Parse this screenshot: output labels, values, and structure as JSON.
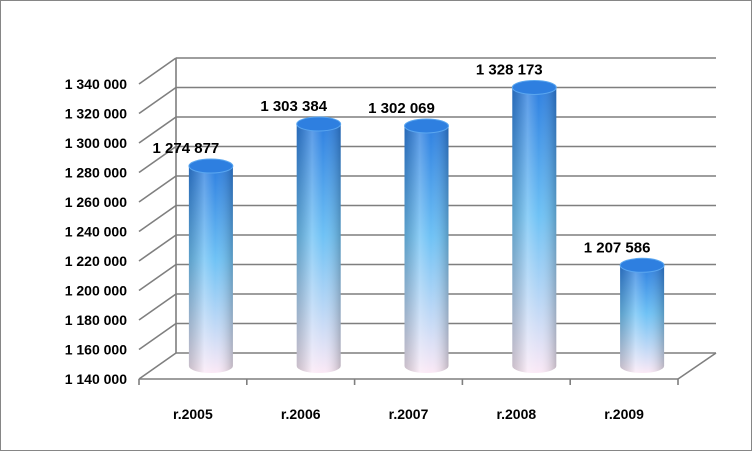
{
  "chart_data": {
    "type": "bar",
    "style": "3d-cylinder",
    "categories": [
      "r.2005",
      "r.2006",
      "r.2007",
      "r.2008",
      "r.2009"
    ],
    "values": [
      1274877,
      1303384,
      1302069,
      1328173,
      1207586
    ],
    "value_labels": [
      "1 274 877",
      "1 303 384",
      "1 302 069",
      "1 328 173",
      "1 207 586"
    ],
    "y_ticks": [
      "1 140 000",
      "1 160 000",
      "1 180 000",
      "1 200 000",
      "1 220 000",
      "1 240 000",
      "1 260 000",
      "1 280 000",
      "1 300 000",
      "1 320 000",
      "1 340 000"
    ],
    "ylim": [
      1140000,
      1340000
    ],
    "ystep": 20000,
    "grid": true,
    "legend": "none",
    "title": "",
    "xlabel": "",
    "ylabel": ""
  },
  "colors": {
    "bar_top": "#2e7fe0",
    "bar_mid": "#6fc2f5",
    "bar_bottom": "#fbe9f6",
    "grid": "#7f7f7f",
    "frame": "#868686"
  }
}
